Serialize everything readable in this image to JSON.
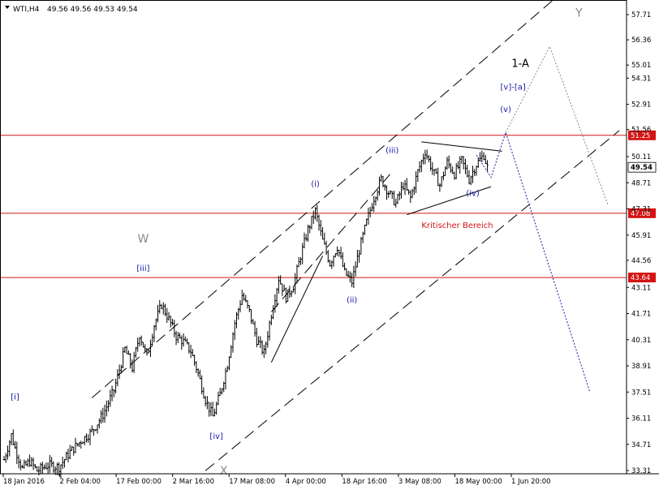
{
  "header": {
    "symbol": "WTI,H4",
    "ohlc": "49.56 49.56 49.53 49.54"
  },
  "chart_data": {
    "type": "candlestick",
    "title": "WTI,H4",
    "ylim": [
      33.31,
      57.71
    ],
    "y_ticks": [
      "57.71",
      "56.36",
      "55.01",
      "54.31",
      "52.91",
      "51.56",
      "50.11",
      "48.71",
      "47.31",
      "45.91",
      "44.56",
      "43.11",
      "41.71",
      "40.31",
      "38.91",
      "37.51",
      "36.11",
      "34.71",
      "33.31"
    ],
    "x_ticks": [
      "18 Jan 2016",
      "2 Feb 04:00",
      "17 Feb 00:00",
      "2 Mar 16:00",
      "17 Mar 08:00",
      "4 Apr 00:00",
      "18 Apr 16:00",
      "3 May 08:00",
      "18 May 00:00",
      "1 Jun 20:00"
    ],
    "current_price": {
      "value": 49.54,
      "label": "49.54"
    },
    "levels": [
      {
        "value": 51.25,
        "label": "51.25",
        "color": "#d41414"
      },
      {
        "value": 47.08,
        "label": "47.08",
        "color": "#d41414"
      },
      {
        "value": 43.64,
        "label": "43.64",
        "color": "#d41414"
      }
    ],
    "price_path": [
      {
        "t": 0,
        "p": 33.9
      },
      {
        "t": 2,
        "p": 35.2
      },
      {
        "t": 3,
        "p": 34.5
      },
      {
        "t": 5,
        "p": 33.4
      },
      {
        "t": 7,
        "p": 33.8
      },
      {
        "t": 9,
        "p": 33.3
      },
      {
        "t": 12,
        "p": 33.6
      },
      {
        "t": 15,
        "p": 33.5
      },
      {
        "t": 18,
        "p": 34.3
      },
      {
        "t": 21,
        "p": 34.9
      },
      {
        "t": 24,
        "p": 35.4
      },
      {
        "t": 27,
        "p": 36.3
      },
      {
        "t": 30,
        "p": 37.6
      },
      {
        "t": 33,
        "p": 39.8
      },
      {
        "t": 35,
        "p": 38.8
      },
      {
        "t": 37,
        "p": 40.6
      },
      {
        "t": 39,
        "p": 39.4
      },
      {
        "t": 41,
        "p": 41.1
      },
      {
        "t": 43,
        "p": 42.2
      },
      {
        "t": 45,
        "p": 41.4
      },
      {
        "t": 47,
        "p": 40.5
      },
      {
        "t": 49,
        "p": 40.2
      },
      {
        "t": 51,
        "p": 39.7
      },
      {
        "t": 53,
        "p": 38.5
      },
      {
        "t": 55,
        "p": 37.1
      },
      {
        "t": 57,
        "p": 36.2
      },
      {
        "t": 59,
        "p": 37.4
      },
      {
        "t": 61,
        "p": 39.0
      },
      {
        "t": 63,
        "p": 41.2
      },
      {
        "t": 65,
        "p": 42.7
      },
      {
        "t": 67,
        "p": 41.8
      },
      {
        "t": 69,
        "p": 40.3
      },
      {
        "t": 71,
        "p": 39.6
      },
      {
        "t": 73,
        "p": 41.7
      },
      {
        "t": 75,
        "p": 43.6
      },
      {
        "t": 77,
        "p": 42.6
      },
      {
        "t": 79,
        "p": 43.2
      },
      {
        "t": 81,
        "p": 44.8
      },
      {
        "t": 83,
        "p": 46.2
      },
      {
        "t": 85,
        "p": 47.2
      },
      {
        "t": 87,
        "p": 45.6
      },
      {
        "t": 89,
        "p": 44.4
      },
      {
        "t": 91,
        "p": 45.3
      },
      {
        "t": 93,
        "p": 43.9
      },
      {
        "t": 95,
        "p": 43.4
      },
      {
        "t": 97,
        "p": 45.1
      },
      {
        "t": 99,
        "p": 46.6
      },
      {
        "t": 101,
        "p": 47.9
      },
      {
        "t": 103,
        "p": 48.9
      },
      {
        "t": 105,
        "p": 48.2
      },
      {
        "t": 107,
        "p": 47.6
      },
      {
        "t": 109,
        "p": 48.6
      },
      {
        "t": 111,
        "p": 47.9
      },
      {
        "t": 113,
        "p": 49.3
      },
      {
        "t": 115,
        "p": 50.4
      },
      {
        "t": 117,
        "p": 49.4
      },
      {
        "t": 119,
        "p": 48.6
      },
      {
        "t": 121,
        "p": 49.8
      },
      {
        "t": 123,
        "p": 49.2
      },
      {
        "t": 125,
        "p": 49.9
      },
      {
        "t": 127,
        "p": 48.9
      },
      {
        "t": 129,
        "p": 49.7
      },
      {
        "t": 131,
        "p": 50.2
      },
      {
        "t": 132,
        "p": 49.54
      }
    ],
    "wave_labels": [
      {
        "text": "[i]",
        "t": 3,
        "p": 37.1,
        "style": "blue"
      },
      {
        "text": "W",
        "t": 38,
        "p": 45.5,
        "style": "grey"
      },
      {
        "text": "[iii]",
        "t": 38,
        "p": 44.0,
        "style": "blue"
      },
      {
        "text": "[iv]",
        "t": 58,
        "p": 35.0,
        "style": "blue"
      },
      {
        "text": "X",
        "t": 60,
        "p": 33.1,
        "style": "grey"
      },
      {
        "text": "(i)",
        "t": 85,
        "p": 48.5,
        "style": "blue"
      },
      {
        "text": "(ii)",
        "t": 95,
        "p": 42.3,
        "style": "blue"
      },
      {
        "text": "(iii)",
        "t": 106,
        "p": 50.3,
        "style": "blue"
      },
      {
        "text": "(iv)",
        "t": 128,
        "p": 48.0,
        "style": "blue"
      },
      {
        "text": "(v)",
        "t": 137,
        "p": 52.5,
        "style": "blue"
      },
      {
        "text": "[v]-[a]",
        "t": 139,
        "p": 53.7,
        "style": "blue"
      },
      {
        "text": "1-A",
        "t": 141,
        "p": 54.9,
        "style": "black"
      },
      {
        "text": "Y",
        "t": 157,
        "p": 57.6,
        "style": "grey"
      }
    ],
    "zone_label": {
      "text": "Kritischer Bereich",
      "t": 114,
      "p": 46.3
    },
    "trendlines": [
      {
        "style": "long-dash",
        "from": [
          24,
          37.2
        ],
        "to": [
          150,
          58.5
        ]
      },
      {
        "style": "long-dash",
        "from": [
          55,
          33.3
        ],
        "to": [
          168,
          51.5
        ]
      },
      {
        "style": "long-dash",
        "from": [
          73,
          41.8
        ],
        "to": [
          106,
          49.3
        ]
      },
      {
        "style": "solid",
        "from": [
          73,
          39.1
        ],
        "to": [
          87,
          44.8
        ]
      },
      {
        "style": "solid",
        "from": [
          114,
          50.9
        ],
        "to": [
          136,
          50.4
        ]
      },
      {
        "style": "solid",
        "from": [
          110,
          47.0
        ],
        "to": [
          133,
          48.5
        ]
      }
    ],
    "projections": [
      {
        "color": "#1a1aa8",
        "points": [
          [
            129,
            50.2
          ],
          [
            133,
            49.0
          ],
          [
            137,
            51.4
          ],
          [
            160,
            37.5
          ]
        ]
      },
      {
        "color": "#8a8a8a",
        "points": [
          [
            137,
            51.4
          ],
          [
            149,
            56.0
          ],
          [
            165,
            47.5
          ]
        ]
      }
    ]
  }
}
